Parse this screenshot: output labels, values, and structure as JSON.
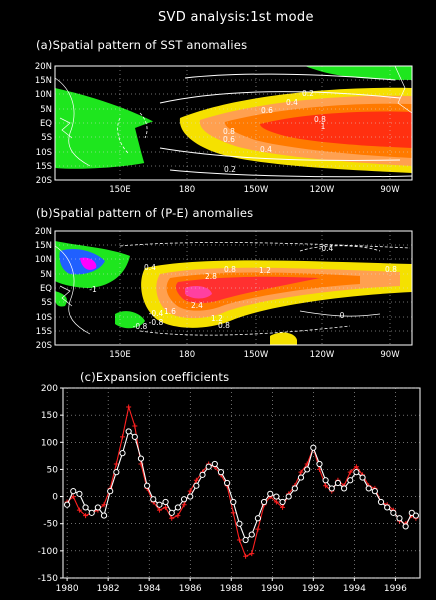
{
  "title": "SVD analysis:1st mode",
  "panels": [
    {
      "label": "(a)Spatial pattern of SST anomalies",
      "lat_ticks": [
        "20N",
        "15N",
        "10N",
        "5N",
        "EQ",
        "5S",
        "10S",
        "15S",
        "20S"
      ],
      "lon_ticks": [
        "150E",
        "180",
        "150W",
        "120W",
        "90W"
      ],
      "contour_labels": [
        "0.2",
        "0.4",
        "0.6",
        "0.8",
        "1",
        "0.8",
        "0.6",
        "0.4",
        "0.2"
      ]
    },
    {
      "label": "(b)Spatial pattern of (P-E) anomalies",
      "lat_ticks": [
        "20N",
        "15N",
        "10N",
        "5N",
        "EQ",
        "5S",
        "10S",
        "15S",
        "20S"
      ],
      "lon_ticks": [
        "150E",
        "180",
        "150W",
        "120W",
        "90W"
      ],
      "contour_labels": [
        "-0.4",
        "0.4",
        "0.8",
        "2.8",
        "1.2",
        "0.8",
        "2.4",
        "1.6",
        "1.2",
        "-0.4",
        "-0.8",
        "0.8",
        "-0.8",
        "-1",
        "0"
      ]
    }
  ],
  "chart_data": {
    "type": "line",
    "title": "(c)Expansion coefficients",
    "xlim": [
      1979.8,
      1997.2
    ],
    "ylim": [
      -150,
      200
    ],
    "xticks": [
      "1980",
      "1982",
      "1984",
      "1986",
      "1988",
      "1990",
      "1992",
      "1994",
      "1996"
    ],
    "yticks": [
      "200",
      "150",
      "100",
      "50",
      "0",
      "-50",
      "-100",
      "-150"
    ],
    "grid": true,
    "series": [
      {
        "color": "#ff2020",
        "marker": "plus",
        "x": [
          1980.0,
          1980.3,
          1980.6,
          1980.9,
          1981.2,
          1981.5,
          1981.8,
          1982.1,
          1982.4,
          1982.7,
          1983.0,
          1983.3,
          1983.6,
          1983.9,
          1984.2,
          1984.5,
          1984.8,
          1985.1,
          1985.4,
          1985.7,
          1986.0,
          1986.3,
          1986.6,
          1986.9,
          1987.2,
          1987.5,
          1987.8,
          1988.1,
          1988.4,
          1988.7,
          1989.0,
          1989.3,
          1989.6,
          1989.9,
          1990.2,
          1990.5,
          1990.8,
          1991.1,
          1991.4,
          1991.7,
          1992.0,
          1992.3,
          1992.6,
          1992.9,
          1993.2,
          1993.5,
          1993.8,
          1994.1,
          1994.4,
          1994.7,
          1995.0,
          1995.3,
          1995.6,
          1995.9,
          1996.2,
          1996.5,
          1996.8,
          1997.0
        ],
        "y": [
          -10,
          0,
          -25,
          -35,
          -30,
          -25,
          -15,
          15,
          60,
          110,
          165,
          130,
          60,
          15,
          -10,
          -25,
          -20,
          -40,
          -35,
          -15,
          10,
          30,
          45,
          60,
          55,
          40,
          20,
          -30,
          -80,
          -110,
          -105,
          -60,
          -15,
          0,
          -10,
          -20,
          5,
          20,
          45,
          60,
          90,
          50,
          20,
          10,
          30,
          20,
          45,
          55,
          40,
          20,
          15,
          -10,
          -15,
          -25,
          -45,
          -50,
          -35,
          -40
        ]
      },
      {
        "color": "#ffffff",
        "marker": "circle",
        "x": [
          1980.0,
          1980.3,
          1980.6,
          1980.9,
          1981.2,
          1981.5,
          1981.8,
          1982.1,
          1982.4,
          1982.7,
          1983.0,
          1983.3,
          1983.6,
          1983.9,
          1984.2,
          1984.5,
          1984.8,
          1985.1,
          1985.4,
          1985.7,
          1986.0,
          1986.3,
          1986.6,
          1986.9,
          1987.2,
          1987.5,
          1987.8,
          1988.1,
          1988.4,
          1988.7,
          1989.0,
          1989.3,
          1989.6,
          1989.9,
          1990.2,
          1990.5,
          1990.8,
          1991.1,
          1991.4,
          1991.7,
          1992.0,
          1992.3,
          1992.6,
          1992.9,
          1993.2,
          1993.5,
          1993.8,
          1994.1,
          1994.4,
          1994.7,
          1995.0,
          1995.3,
          1995.6,
          1995.9,
          1996.2,
          1996.5,
          1996.8,
          1997.0
        ],
        "y": [
          -15,
          10,
          5,
          -20,
          -30,
          -20,
          -35,
          10,
          45,
          80,
          120,
          110,
          70,
          20,
          -5,
          -15,
          -10,
          -30,
          -20,
          -5,
          0,
          20,
          40,
          55,
          60,
          45,
          25,
          -10,
          -50,
          -80,
          -70,
          -40,
          -10,
          5,
          0,
          -10,
          0,
          15,
          35,
          50,
          90,
          60,
          30,
          15,
          25,
          15,
          30,
          45,
          35,
          15,
          10,
          -10,
          -20,
          -30,
          -40,
          -55,
          -30,
          -35
        ]
      }
    ]
  }
}
